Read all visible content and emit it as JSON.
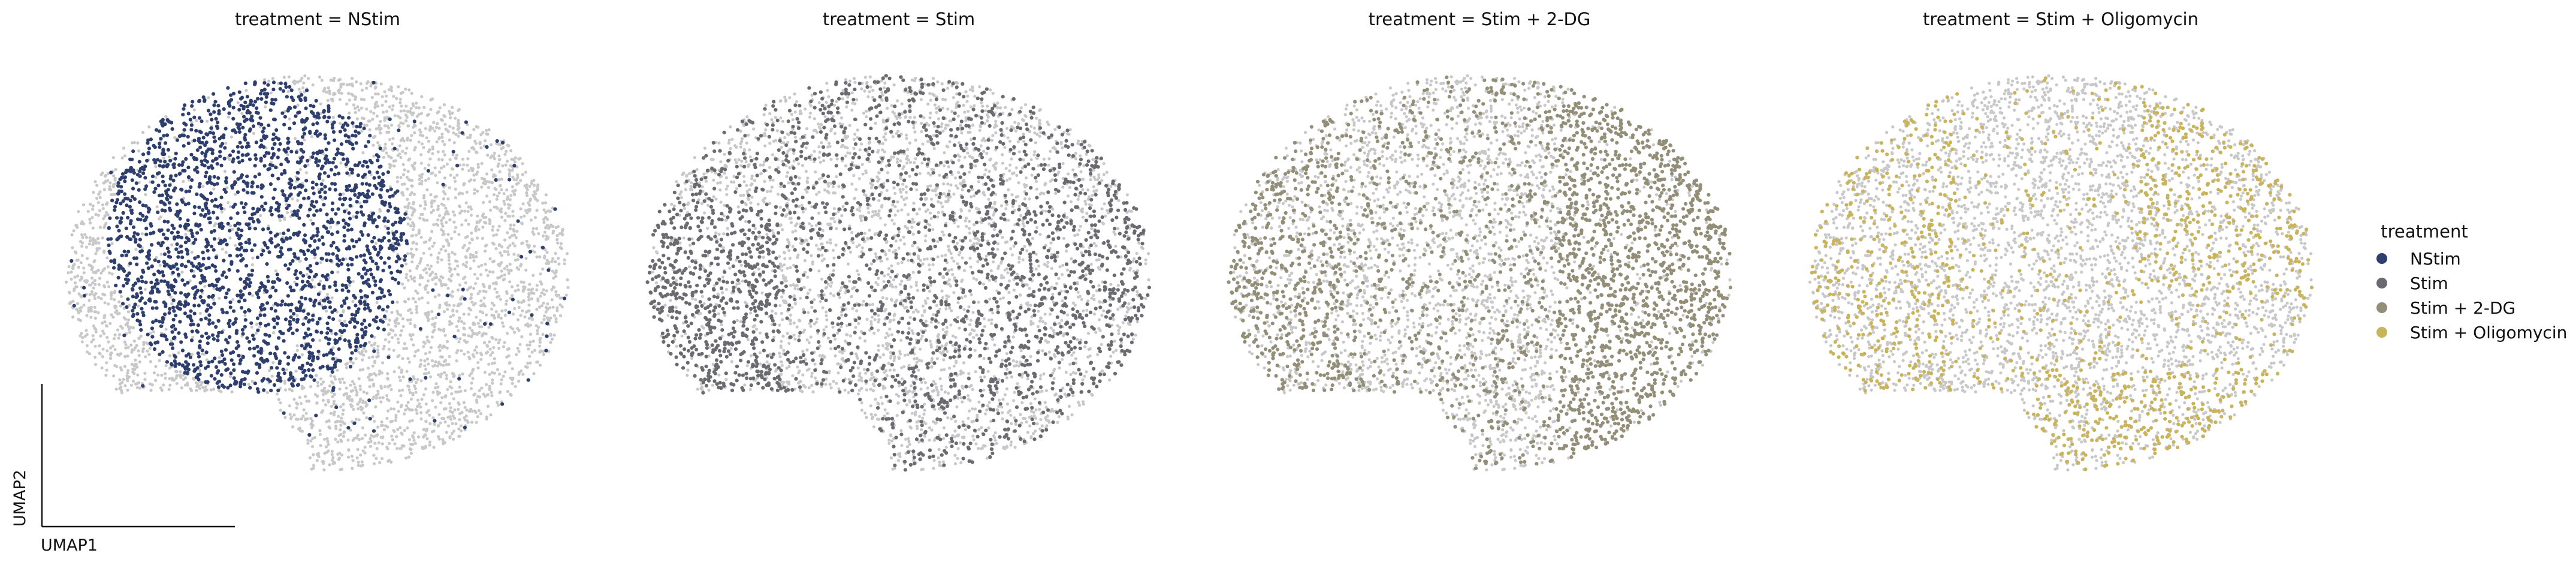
{
  "chart_data": {
    "type": "scatter",
    "panels": [
      {
        "title": "treatment = NStim",
        "highlight": "NStim"
      },
      {
        "title": "treatment = Stim",
        "highlight": "Stim"
      },
      {
        "title": "treatment = Stim + 2-DG",
        "highlight": "Stim + 2-DG"
      },
      {
        "title": "treatment = Stim + Oligomycin",
        "highlight": "Stim + Oligomycin"
      }
    ],
    "xlabel": "UMAP1",
    "ylabel": "UMAP2",
    "background_color": "#c8c8c8",
    "legend": {
      "title": "treatment",
      "placement": "right",
      "entries": [
        {
          "label": "NStim",
          "color": "#2e3f6e"
        },
        {
          "label": "Stim",
          "color": "#6a6b70"
        },
        {
          "label": "Stim + 2-DG",
          "color": "#928e77"
        },
        {
          "label": "Stim + Oligomycin",
          "color": "#c9b35b"
        }
      ]
    }
  }
}
